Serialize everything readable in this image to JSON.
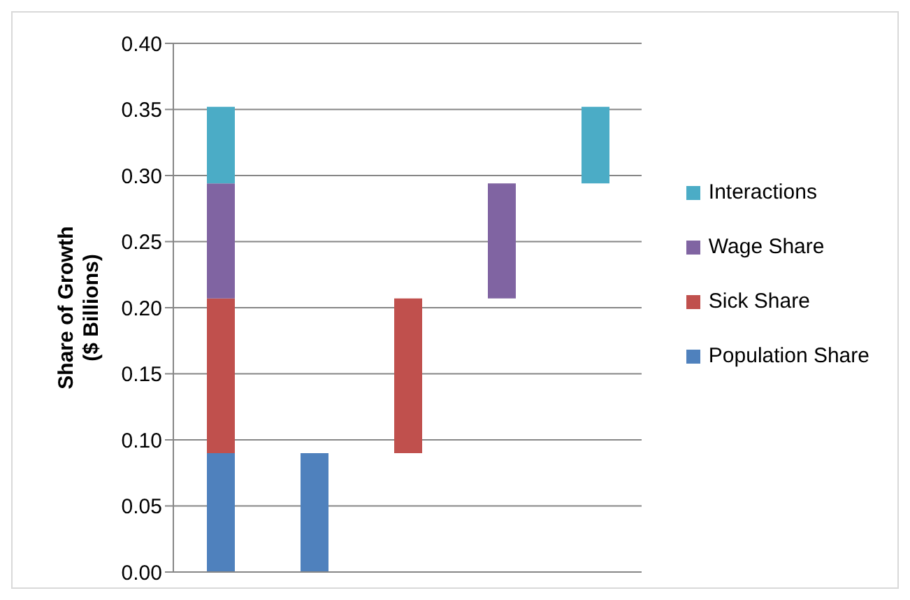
{
  "chart_data": {
    "type": "bar",
    "ylabel": "Share of Growth\n($ Billions)",
    "categories": [
      null,
      null,
      null,
      null,
      null
    ],
    "series": [
      {
        "name": "Population Share",
        "color": "#4f81bd",
        "base": [
          0,
          0,
          null,
          null,
          null
        ],
        "values": [
          0.09,
          0.09,
          null,
          null,
          null
        ]
      },
      {
        "name": "Sick Share",
        "color": "#c0504d",
        "base": [
          0.09,
          null,
          0.09,
          null,
          null
        ],
        "values": [
          0.117,
          null,
          0.117,
          null,
          null
        ]
      },
      {
        "name": "Wage Share",
        "color": "#8064a2",
        "base": [
          0.207,
          null,
          null,
          0.207,
          null
        ],
        "values": [
          0.087,
          null,
          null,
          0.087,
          null
        ]
      },
      {
        "name": "Interactions",
        "color": "#4bacc6",
        "base": [
          0.294,
          null,
          null,
          null,
          0.294
        ],
        "values": [
          0.058,
          null,
          null,
          null,
          0.058
        ]
      }
    ],
    "ylim": [
      0,
      0.4
    ],
    "yticks": [
      {
        "value": 0,
        "label": "0.00"
      },
      {
        "value": 0.05,
        "label": "0.05"
      },
      {
        "value": 0.1,
        "label": "0.10"
      },
      {
        "value": 0.15,
        "label": "0.15"
      },
      {
        "value": 0.2,
        "label": "0.20"
      },
      {
        "value": 0.25,
        "label": "0.25"
      },
      {
        "value": 0.3,
        "label": "0.30"
      },
      {
        "value": 0.35,
        "label": "0.35"
      },
      {
        "value": 0.4,
        "label": "0.40"
      }
    ],
    "grid": "y",
    "legend": "right"
  }
}
